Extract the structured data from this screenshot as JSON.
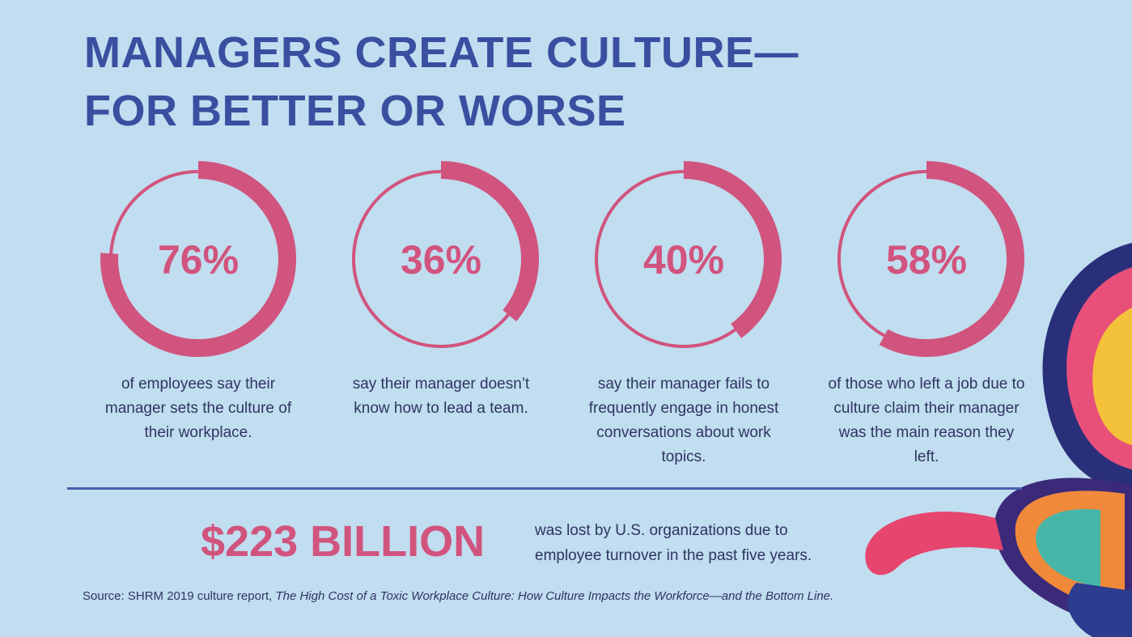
{
  "title": [
    "MANAGERS CREATE CULTURE—",
    "FOR BETTER OR WORSE"
  ],
  "chart_data": [
    {
      "type": "donut",
      "values": [
        76
      ],
      "value_labels": [
        "76%"
      ],
      "color": "#d1547e",
      "caption": "of employees say their manager sets the culture of their workplace."
    },
    {
      "type": "donut",
      "values": [
        36
      ],
      "value_labels": [
        "36%"
      ],
      "color": "#d1547e",
      "caption": "say their manager doesn’t know how to lead a team."
    },
    {
      "type": "donut",
      "values": [
        40
      ],
      "value_labels": [
        "40%"
      ],
      "color": "#d1547e",
      "caption": "say their manager fails to frequently engage in honest conversations about work topics."
    },
    {
      "type": "donut",
      "values": [
        58
      ],
      "value_labels": [
        "58%"
      ],
      "color": "#d1547e",
      "caption": "of those who left a job due to culture claim their manager was the main reason they left."
    }
  ],
  "headline": {
    "amount": "$223 BILLION",
    "text": "was lost by U.S. organizations due to employee turnover in the past five years."
  },
  "source": {
    "prefix": "Source: SHRM 2019 culture report, ",
    "title": "The High Cost of a Toxic Workplace Culture: How Culture Impacts the Workforce—and the Bottom Line."
  }
}
